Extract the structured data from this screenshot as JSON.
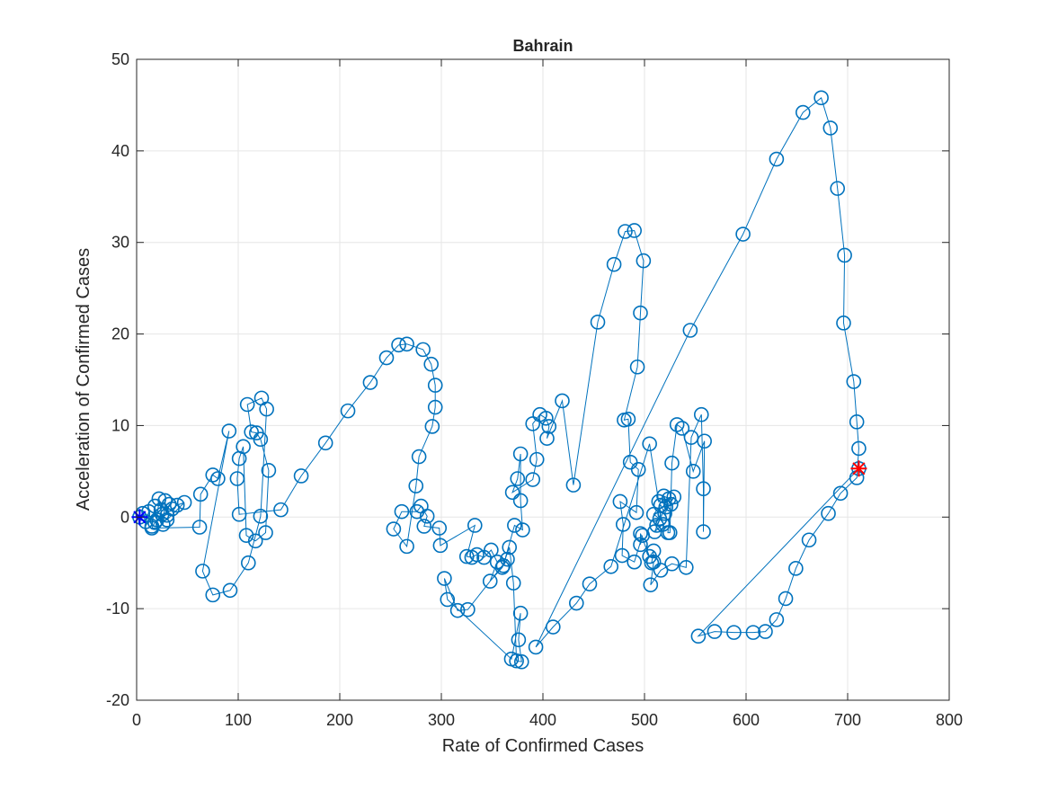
{
  "chart_data": {
    "type": "scatter",
    "title": "Bahrain",
    "xlabel": "Rate of Confirmed Cases",
    "ylabel": "Acceleration of Confirmed Cases",
    "xlim": [
      0,
      800
    ],
    "ylim": [
      -20,
      50
    ],
    "xticks": [
      0,
      100,
      200,
      300,
      400,
      500,
      600,
      700,
      800
    ],
    "yticks": [
      -20,
      -10,
      0,
      10,
      20,
      30,
      40,
      50
    ],
    "grid": true,
    "colors": {
      "series": "#0072BD",
      "start_marker": "#0000FF",
      "end_marker": "#FF0000",
      "grid": "#e6e6e6",
      "axis": "#262626"
    },
    "series": [
      {
        "marker": "circle",
        "line": "solid",
        "points": [
          [
            3,
            0
          ],
          [
            6,
            0.4
          ],
          [
            9,
            -0.5
          ],
          [
            12,
            0.6
          ],
          [
            15,
            -1
          ],
          [
            18,
            1.2
          ],
          [
            20,
            -0.3
          ],
          [
            22,
            2
          ],
          [
            24,
            0.8
          ],
          [
            26,
            -0.8
          ],
          [
            28,
            1.8
          ],
          [
            30,
            0.2
          ],
          [
            32,
            1.4
          ],
          [
            35,
            0.9
          ],
          [
            40,
            1.3
          ],
          [
            47,
            1.6
          ],
          [
            30,
            -0.3
          ],
          [
            25,
            0.3
          ],
          [
            18,
            -0.6
          ],
          [
            15,
            -1.2
          ],
          [
            62,
            -1.1
          ],
          [
            63,
            2.5
          ],
          [
            75,
            4.6
          ],
          [
            80,
            4.2
          ],
          [
            91,
            9.4
          ],
          [
            65,
            -5.9
          ],
          [
            75,
            -8.5
          ],
          [
            92,
            -8
          ],
          [
            110,
            -5
          ],
          [
            122,
            0.1
          ],
          [
            128,
            11.8
          ],
          [
            123,
            13
          ],
          [
            109,
            12.3
          ],
          [
            113,
            9.3
          ],
          [
            118,
            9.2
          ],
          [
            122,
            8.5
          ],
          [
            130,
            5.1
          ],
          [
            127,
            -1.7
          ],
          [
            117,
            -2.6
          ],
          [
            108,
            -2
          ],
          [
            105,
            7.7
          ],
          [
            101,
            6.4
          ],
          [
            99,
            4.2
          ],
          [
            101,
            0.3
          ],
          [
            142,
            0.8
          ],
          [
            162,
            4.5
          ],
          [
            186,
            8.1
          ],
          [
            208,
            11.6
          ],
          [
            230,
            14.7
          ],
          [
            246,
            17.4
          ],
          [
            258,
            18.8
          ],
          [
            266,
            18.9
          ],
          [
            282,
            18.3
          ],
          [
            290,
            16.7
          ],
          [
            294,
            14.4
          ],
          [
            294,
            12
          ],
          [
            291,
            9.9
          ],
          [
            278,
            6.6
          ],
          [
            275,
            3.4
          ],
          [
            266,
            -3.2
          ],
          [
            253,
            -1.3
          ],
          [
            261,
            0.6
          ],
          [
            276,
            0.6
          ],
          [
            280,
            1.2
          ],
          [
            286,
            0.1
          ],
          [
            283,
            -1
          ],
          [
            298,
            -1.2
          ],
          [
            299,
            -3.1
          ],
          [
            333,
            -0.9
          ],
          [
            325,
            -4.3
          ],
          [
            330,
            -4.4
          ],
          [
            335,
            -4.1
          ],
          [
            342,
            -4.4
          ],
          [
            349,
            -3.6
          ],
          [
            355,
            -4.9
          ],
          [
            348,
            -7
          ],
          [
            360,
            -5.5
          ],
          [
            367,
            -3.3
          ],
          [
            371,
            -7.2
          ],
          [
            374,
            -15.7
          ],
          [
            379,
            -15.8
          ],
          [
            376,
            -13.4
          ],
          [
            378,
            -10.5
          ],
          [
            369,
            -15.5
          ],
          [
            306,
            -9
          ],
          [
            303,
            -6.7
          ],
          [
            316,
            -10.2
          ],
          [
            326,
            -10.1
          ],
          [
            365,
            -4.6
          ],
          [
            361,
            -5.3
          ],
          [
            372,
            -0.9
          ],
          [
            380,
            -1.4
          ],
          [
            378,
            1.8
          ],
          [
            378,
            6.9
          ],
          [
            375,
            4.2
          ],
          [
            370,
            2.7
          ],
          [
            390,
            4.1
          ],
          [
            394,
            6.3
          ],
          [
            390,
            10.2
          ],
          [
            397,
            11.2
          ],
          [
            403,
            10.8
          ],
          [
            406,
            9.9
          ],
          [
            404,
            8.6
          ],
          [
            419,
            12.7
          ],
          [
            430,
            3.5
          ],
          [
            454,
            21.3
          ],
          [
            470,
            27.6
          ],
          [
            481,
            31.2
          ],
          [
            490,
            31.3
          ],
          [
            499,
            28
          ],
          [
            496,
            22.3
          ],
          [
            493,
            16.4
          ],
          [
            480,
            10.6
          ],
          [
            484,
            10.7
          ],
          [
            486,
            6
          ],
          [
            494,
            5.2
          ],
          [
            492,
            0.5
          ],
          [
            476,
            1.7
          ],
          [
            479,
            -0.8
          ],
          [
            478,
            -4.2
          ],
          [
            490,
            -4.9
          ],
          [
            498,
            -2
          ],
          [
            496,
            -3
          ],
          [
            496,
            -1.8
          ],
          [
            505,
            -4.3
          ],
          [
            509,
            -3.7
          ],
          [
            507,
            -5
          ],
          [
            509,
            -4.9
          ],
          [
            506,
            -7.4
          ],
          [
            516,
            -5.8
          ],
          [
            527,
            -5.1
          ],
          [
            541,
            -5.5
          ],
          [
            546,
            8.7
          ],
          [
            556,
            11.2
          ],
          [
            558,
            3.1
          ],
          [
            558,
            -1.6
          ],
          [
            559,
            8.3
          ],
          [
            548,
            5
          ],
          [
            537,
            9.7
          ],
          [
            532,
            10.1
          ],
          [
            527,
            5.9
          ],
          [
            525,
            -1.7
          ],
          [
            523,
            -1.7
          ],
          [
            526,
            1.4
          ],
          [
            521,
            1.1
          ],
          [
            529,
            2.2
          ],
          [
            520,
            0.4
          ],
          [
            516,
            1.3
          ],
          [
            509,
            0.3
          ],
          [
            515,
            -0.2
          ],
          [
            512,
            -0.9
          ],
          [
            518,
            -0.8
          ],
          [
            510,
            -1.6
          ],
          [
            524,
            2
          ],
          [
            519,
            2.3
          ],
          [
            514,
            1.7
          ],
          [
            505,
            8
          ],
          [
            467,
            -5.4
          ],
          [
            446,
            -7.3
          ],
          [
            433,
            -9.4
          ],
          [
            410,
            -12
          ],
          [
            393,
            -14.2
          ],
          [
            545,
            20.4
          ],
          [
            597,
            30.9
          ],
          [
            630,
            39.1
          ],
          [
            656,
            44.2
          ],
          [
            674,
            45.8
          ],
          [
            683,
            42.5
          ],
          [
            690,
            35.9
          ],
          [
            697,
            28.6
          ],
          [
            696,
            21.2
          ],
          [
            706,
            14.8
          ],
          [
            709,
            10.4
          ],
          [
            711,
            7.5
          ],
          [
            709,
            4.3
          ],
          [
            693,
            2.6
          ],
          [
            681,
            0.4
          ],
          [
            662,
            -2.5
          ],
          [
            649,
            -5.6
          ],
          [
            639,
            -8.9
          ],
          [
            630,
            -11.2
          ],
          [
            619,
            -12.5
          ],
          [
            607,
            -12.6
          ],
          [
            588,
            -12.6
          ],
          [
            569,
            -12.5
          ],
          [
            553,
            -13
          ],
          [
            711,
            5.3
          ]
        ],
        "start_point": [
          3,
          0
        ],
        "end_point": [
          711,
          5.3
        ]
      }
    ]
  }
}
